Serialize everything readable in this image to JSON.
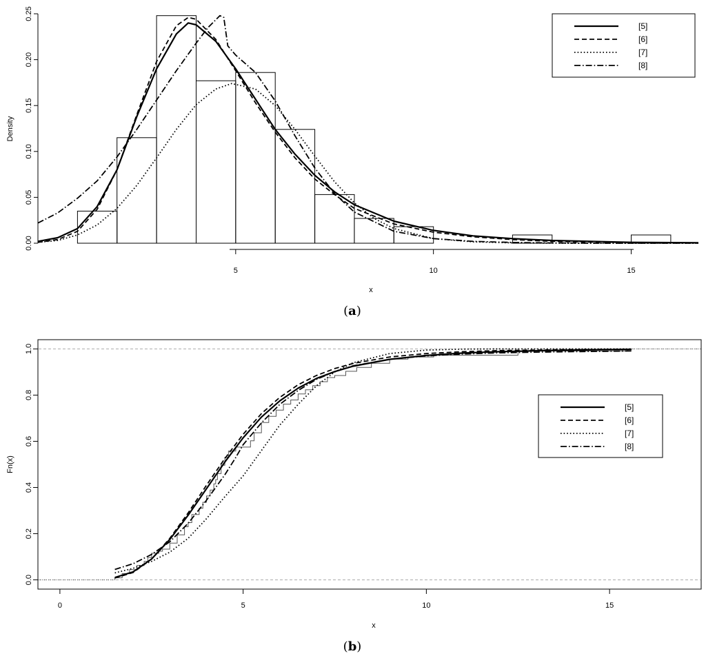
{
  "chart_data": [
    {
      "panel": "(a)",
      "caption_open": "(",
      "caption_letter": "a",
      "caption_close": ")",
      "type": "bar",
      "xlabel": "x",
      "ylabel": "Density",
      "xlim": [
        0,
        16.7
      ],
      "ylim": [
        0,
        0.25
      ],
      "xticks": [
        5,
        10,
        15
      ],
      "yticks": [
        0.0,
        0.05,
        0.1,
        0.15,
        0.2,
        0.25
      ],
      "ytick_labels": [
        "0.00",
        "0.05",
        "0.10",
        "0.15",
        "0.20",
        "0.25"
      ],
      "legend_position": "top-right",
      "histogram": {
        "breaks": [
          1,
          2,
          3,
          4,
          5,
          6,
          7,
          8,
          9,
          10,
          11,
          12,
          13,
          14,
          15,
          16
        ],
        "density": [
          0.035,
          0.115,
          0.248,
          0.177,
          0.186,
          0.124,
          0.053,
          0.027,
          0.018,
          0,
          0,
          0.009,
          0,
          0,
          0.009
        ]
      },
      "series": [
        {
          "name": "[5]",
          "style": "solid",
          "x": [
            0,
            0.5,
            1,
            1.5,
            2,
            2.5,
            3,
            3.5,
            3.8,
            4,
            4.5,
            5,
            5.5,
            6,
            6.5,
            7,
            7.5,
            8,
            9,
            10,
            11,
            12,
            13,
            14,
            15,
            16,
            16.7
          ],
          "y": [
            0.002,
            0.006,
            0.016,
            0.04,
            0.08,
            0.138,
            0.19,
            0.228,
            0.24,
            0.238,
            0.22,
            0.19,
            0.157,
            0.124,
            0.097,
            0.074,
            0.056,
            0.042,
            0.024,
            0.014,
            0.008,
            0.005,
            0.003,
            0.002,
            0.001,
            0.0007,
            0.0005
          ]
        },
        {
          "name": "[6]",
          "style": "dashed",
          "x": [
            0,
            0.5,
            1,
            1.5,
            2,
            2.5,
            3,
            3.5,
            3.8,
            4,
            4.5,
            5,
            5.5,
            6,
            6.5,
            7,
            7.5,
            8,
            9,
            10,
            11,
            12,
            13,
            14,
            15,
            16,
            16.7
          ],
          "y": [
            0.001,
            0.004,
            0.013,
            0.037,
            0.08,
            0.14,
            0.198,
            0.237,
            0.246,
            0.244,
            0.222,
            0.188,
            0.153,
            0.121,
            0.093,
            0.07,
            0.053,
            0.038,
            0.021,
            0.012,
            0.007,
            0.004,
            0.002,
            0.0013,
            0.0008,
            0.0005,
            0.0003
          ]
        },
        {
          "name": "[7]",
          "style": "dotted",
          "x": [
            0,
            0.5,
            1,
            1.5,
            2,
            2.5,
            3,
            3.5,
            4,
            4.5,
            4.9,
            5.5,
            6,
            6.5,
            7,
            7.5,
            8,
            8.5,
            9,
            10,
            11,
            12,
            13,
            14,
            15,
            16.7
          ],
          "y": [
            0.001,
            0.003,
            0.009,
            0.02,
            0.038,
            0.063,
            0.093,
            0.124,
            0.151,
            0.168,
            0.174,
            0.168,
            0.15,
            0.124,
            0.095,
            0.067,
            0.044,
            0.027,
            0.016,
            0.005,
            0.0015,
            0.0004,
            0.0001,
            0,
            0,
            0
          ]
        },
        {
          "name": "[8]",
          "style": "dotdash",
          "x": [
            0,
            0.5,
            1,
            1.5,
            2,
            2.5,
            3,
            3.5,
            4,
            4.3,
            4.6,
            4.7,
            4.8,
            5,
            5.5,
            6,
            6.5,
            7,
            7.5,
            8,
            9,
            10,
            11,
            12,
            13,
            14,
            15,
            16.7
          ],
          "y": [
            0.022,
            0.033,
            0.049,
            0.068,
            0.094,
            0.124,
            0.156,
            0.188,
            0.218,
            0.235,
            0.248,
            0.246,
            0.215,
            0.205,
            0.186,
            0.155,
            0.117,
            0.082,
            0.054,
            0.034,
            0.013,
            0.005,
            0.002,
            0.0008,
            0.0003,
            0.0001,
            0,
            0
          ]
        }
      ]
    },
    {
      "panel": "(b)",
      "caption_open": "(",
      "caption_letter": "b",
      "caption_close": ")",
      "type": "line",
      "xlabel": "x",
      "ylabel": "Fn(x)",
      "xlim": [
        -0.6,
        17.5
      ],
      "ylim": [
        -0.04,
        1.04
      ],
      "xticks": [
        0,
        5,
        10,
        15
      ],
      "yticks": [
        0,
        0.2,
        0.4,
        0.6,
        0.8,
        1.0
      ],
      "ytick_labels": [
        "0.0",
        "0.2",
        "0.4",
        "0.6",
        "0.8",
        "1.0"
      ],
      "hlines": [
        0,
        1
      ],
      "legend_position": "right",
      "ecdf": {
        "x": [
          1.5,
          1.7,
          1.9,
          2.1,
          2.3,
          2.4,
          2.5,
          2.7,
          2.8,
          3.0,
          3.2,
          3.4,
          3.5,
          3.6,
          3.8,
          3.9,
          4.0,
          4.1,
          4.2,
          4.25,
          4.3,
          4.4,
          4.5,
          4.6,
          4.8,
          5.0,
          5.2,
          5.3,
          5.5,
          5.7,
          5.9,
          6.1,
          6.3,
          6.5,
          6.7,
          6.9,
          7.1,
          7.3,
          7.5,
          7.8,
          8.1,
          8.5,
          9.0,
          9.5,
          10.2,
          12.5,
          15.5
        ],
        "y": [
          0.009,
          0.027,
          0.044,
          0.062,
          0.08,
          0.097,
          0.115,
          0.124,
          0.133,
          0.159,
          0.195,
          0.23,
          0.248,
          0.283,
          0.31,
          0.336,
          0.363,
          0.389,
          0.416,
          0.434,
          0.46,
          0.496,
          0.531,
          0.558,
          0.575,
          0.575,
          0.602,
          0.637,
          0.681,
          0.708,
          0.735,
          0.761,
          0.779,
          0.805,
          0.823,
          0.841,
          0.858,
          0.876,
          0.885,
          0.903,
          0.92,
          0.938,
          0.956,
          0.965,
          0.973,
          0.991,
          1.0
        ]
      },
      "series": [
        {
          "name": "[5]",
          "style": "solid",
          "x": [
            1.5,
            2,
            2.5,
            3,
            3.5,
            4,
            4.5,
            5,
            5.5,
            6,
            6.5,
            7,
            7.5,
            8,
            9,
            10,
            11,
            12,
            13,
            14,
            15,
            15.6
          ],
          "y": [
            0.01,
            0.035,
            0.09,
            0.175,
            0.28,
            0.395,
            0.51,
            0.615,
            0.705,
            0.775,
            0.83,
            0.872,
            0.902,
            0.925,
            0.955,
            0.972,
            0.982,
            0.988,
            0.992,
            0.995,
            0.997,
            0.998
          ]
        },
        {
          "name": "[6]",
          "style": "dashed",
          "x": [
            1.5,
            2,
            2.5,
            3,
            3.5,
            4,
            4.5,
            5,
            5.5,
            6,
            6.5,
            7,
            7.5,
            8,
            9,
            10,
            11,
            12,
            13,
            14,
            15,
            15.6
          ],
          "y": [
            0.008,
            0.032,
            0.09,
            0.18,
            0.29,
            0.41,
            0.525,
            0.63,
            0.72,
            0.79,
            0.845,
            0.885,
            0.915,
            0.937,
            0.965,
            0.98,
            0.988,
            0.993,
            0.995,
            0.997,
            0.998,
            0.999
          ]
        },
        {
          "name": "[7]",
          "style": "dotted",
          "x": [
            1.5,
            2,
            2.5,
            3,
            3.5,
            4,
            4.5,
            5,
            5.5,
            6,
            6.5,
            7,
            7.5,
            8,
            9,
            10,
            11,
            12,
            13,
            14,
            15,
            15.6
          ],
          "y": [
            0.03,
            0.05,
            0.08,
            0.12,
            0.18,
            0.265,
            0.36,
            0.45,
            0.56,
            0.67,
            0.76,
            0.84,
            0.9,
            0.94,
            0.98,
            0.995,
            0.999,
            1.0,
            1.0,
            1.0,
            1.0,
            1.0
          ]
        },
        {
          "name": "[8]",
          "style": "dotdash",
          "x": [
            1.5,
            2,
            2.5,
            3,
            3.5,
            4,
            4.5,
            4.8,
            5,
            5.5,
            6,
            6.5,
            7,
            7.5,
            8,
            9,
            10,
            11,
            12,
            13,
            14,
            15,
            15.6
          ],
          "y": [
            0.045,
            0.07,
            0.11,
            0.165,
            0.245,
            0.345,
            0.455,
            0.53,
            0.585,
            0.68,
            0.76,
            0.82,
            0.868,
            0.902,
            0.927,
            0.955,
            0.97,
            0.978,
            0.983,
            0.986,
            0.988,
            0.99,
            0.991
          ]
        }
      ]
    }
  ]
}
